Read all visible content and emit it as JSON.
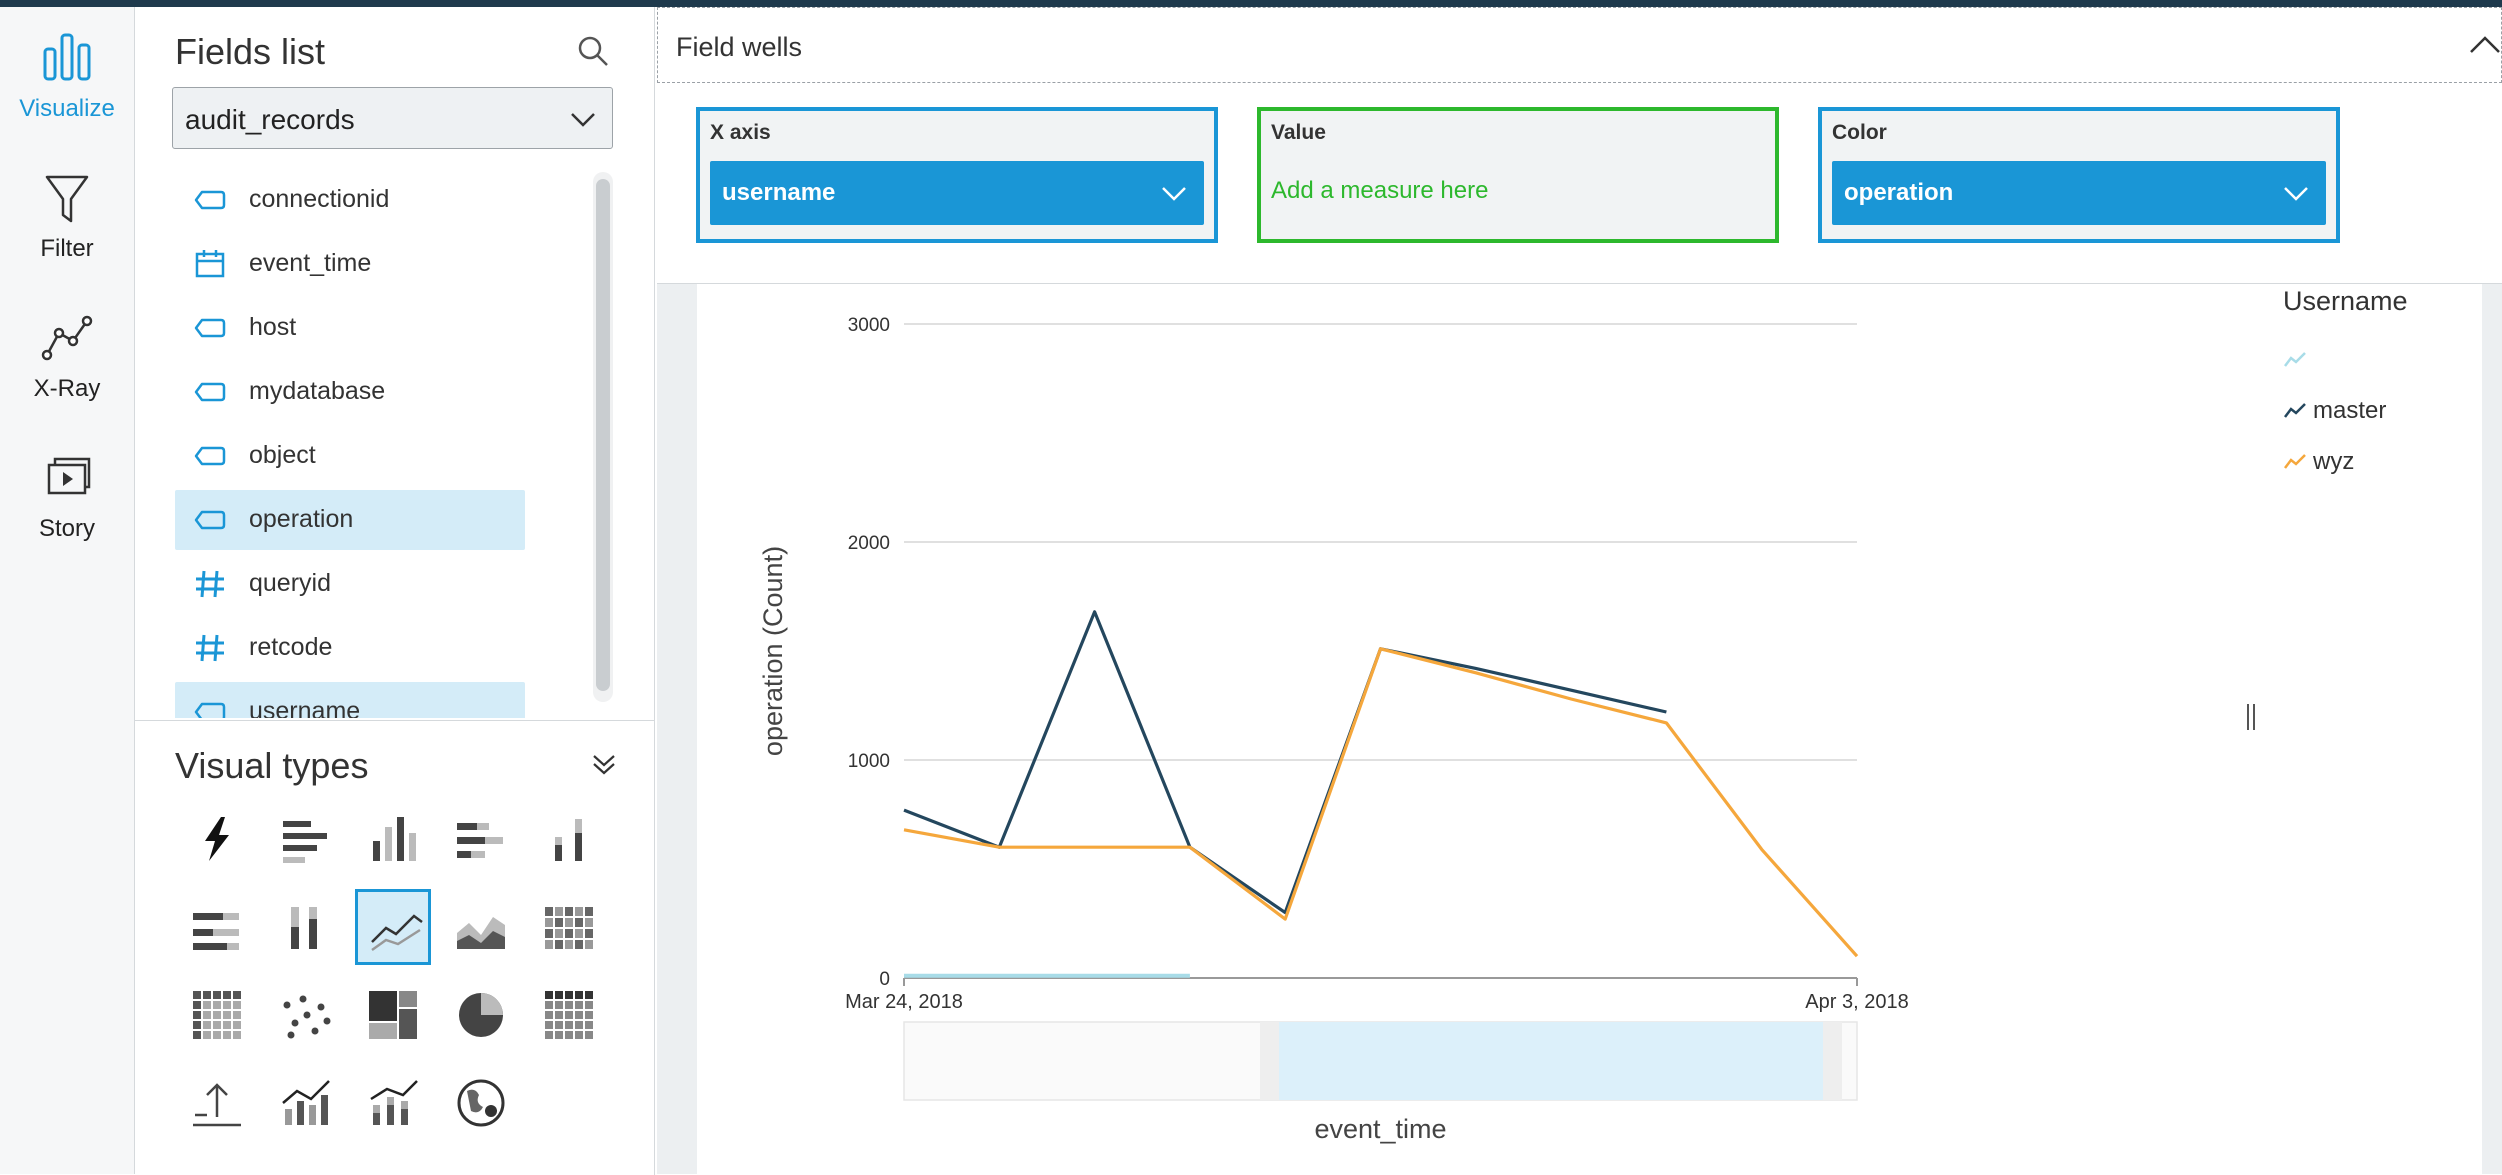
{
  "nav": {
    "items": [
      {
        "label": "Visualize",
        "icon": "bar-chart-icon",
        "active": true
      },
      {
        "label": "Filter",
        "icon": "funnel-icon",
        "active": false
      },
      {
        "label": "X-Ray",
        "icon": "xray-icon",
        "active": false
      },
      {
        "label": "Story",
        "icon": "story-icon",
        "active": false
      }
    ]
  },
  "fields_panel": {
    "title": "Fields list",
    "dataset": "audit_records",
    "fields": [
      {
        "name": "connectionid",
        "type": "dimension",
        "selected": false
      },
      {
        "name": "event_time",
        "type": "date",
        "selected": false
      },
      {
        "name": "host",
        "type": "dimension",
        "selected": false
      },
      {
        "name": "mydatabase",
        "type": "dimension",
        "selected": false
      },
      {
        "name": "object",
        "type": "dimension",
        "selected": false
      },
      {
        "name": "operation",
        "type": "dimension",
        "selected": true
      },
      {
        "name": "queryid",
        "type": "measure",
        "selected": false
      },
      {
        "name": "retcode",
        "type": "measure",
        "selected": false
      },
      {
        "name": "username",
        "type": "dimension",
        "selected": true
      }
    ]
  },
  "visual_types": {
    "title": "Visual types",
    "items": [
      "autograph-icon",
      "horizontal-bar-icon",
      "vertical-bar-icon",
      "horizontal-stacked-bar-icon",
      "vertical-stacked-bar-icon",
      "horizontal-100-bar-icon",
      "vertical-100-bar-icon",
      "line-chart-icon",
      "area-chart-icon",
      "heat-map-icon",
      "pivot-table-icon",
      "scatter-plot-icon",
      "tree-map-icon",
      "pie-chart-icon",
      "table-icon",
      "kpi-icon",
      "combo-bar-line-icon",
      "combo-stacked-line-icon",
      "geo-map-icon"
    ],
    "selected": "line-chart-icon"
  },
  "field_wells": {
    "title": "Field wells",
    "x_axis": {
      "label": "X axis",
      "value": "username"
    },
    "value": {
      "label": "Value",
      "placeholder": "Add a measure here"
    },
    "color": {
      "label": "Color",
      "value": "operation"
    }
  },
  "legend": {
    "title": "Username",
    "items": [
      {
        "name": "",
        "color": "#a8dce8"
      },
      {
        "name": "master",
        "color": "#24475e"
      },
      {
        "name": "wyz",
        "color": "#f5a73c"
      }
    ]
  },
  "chart_data": {
    "type": "line",
    "xlabel": "event_time",
    "ylabel": "operation (Count)",
    "ylim": [
      0,
      3000
    ],
    "yticks": [
      0,
      1000,
      2000,
      3000
    ],
    "xrange": [
      "2018-03-24",
      "2018-04-03"
    ],
    "xtick_labels": [
      "Mar 24, 2018",
      "Apr 3, 2018"
    ],
    "grid": true,
    "legend_position": "right",
    "series": [
      {
        "name": "",
        "color": "#a8dce8",
        "points": [
          [
            "2018-03-24",
            10
          ],
          [
            "2018-03-27",
            10
          ]
        ]
      },
      {
        "name": "master",
        "color": "#24475e",
        "points": [
          [
            "2018-03-24",
            770
          ],
          [
            "2018-03-25",
            600
          ],
          [
            "2018-03-26",
            1680
          ],
          [
            "2018-03-27",
            600
          ],
          [
            "2018-03-28",
            300
          ],
          [
            "2018-03-29",
            1510
          ],
          [
            "2018-03-30",
            1420
          ],
          [
            "2018-03-31",
            1320
          ],
          [
            "2018-04-01",
            1220
          ]
        ]
      },
      {
        "name": "wyz",
        "color": "#f5a73c",
        "points": [
          [
            "2018-03-24",
            680
          ],
          [
            "2018-03-25",
            600
          ],
          [
            "2018-03-27",
            600
          ],
          [
            "2018-03-28",
            270
          ],
          [
            "2018-03-29",
            1510
          ],
          [
            "2018-03-30",
            1400
          ],
          [
            "2018-03-31",
            1280
          ],
          [
            "2018-04-01",
            1170
          ],
          [
            "2018-04-02",
            590
          ],
          [
            "2018-04-03",
            100
          ]
        ]
      }
    ]
  }
}
